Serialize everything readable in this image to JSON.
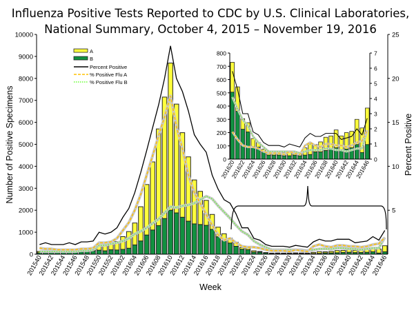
{
  "chart_data": {
    "type": "bar",
    "title": "Influenza Positive Tests Reported to CDC by U.S. Clinical Laboratories,",
    "subtitle": "National Summary, October 4, 2015 – November 19, 2016",
    "xlabel": "Week",
    "ylabel": "Number of Positive Specimens",
    "y2label": "Percent Positive",
    "ylim": [
      0,
      10000
    ],
    "y2lim": [
      0,
      25
    ],
    "yticks": [
      "0",
      "1000",
      "2000",
      "3000",
      "4000",
      "5000",
      "6000",
      "7000",
      "8000",
      "9000",
      "10000"
    ],
    "y2ticks": [
      "5",
      "10",
      "15",
      "20",
      "25"
    ],
    "legend_position": "top-left",
    "categories": [
      "201540",
      "201541",
      "201542",
      "201543",
      "201544",
      "201545",
      "201546",
      "201547",
      "201548",
      "201549",
      "201550",
      "201551",
      "201552",
      "201601",
      "201602",
      "201603",
      "201604",
      "201605",
      "201606",
      "201607",
      "201608",
      "201609",
      "201610",
      "201611",
      "201612",
      "201613",
      "201614",
      "201615",
      "201616",
      "201617",
      "201618",
      "201619",
      "201620",
      "201621",
      "201622",
      "201623",
      "201624",
      "201625",
      "201626",
      "201627",
      "201628",
      "201629",
      "201630",
      "201631",
      "201632",
      "201633",
      "201634",
      "201635",
      "201636",
      "201637",
      "201638",
      "201639",
      "201640",
      "201641",
      "201642",
      "201643",
      "201644",
      "201645",
      "201646"
    ],
    "xtick_labels": [
      "201540",
      "201542",
      "201544",
      "201546",
      "201548",
      "201550",
      "201552",
      "201602",
      "201604",
      "201606",
      "201608",
      "201610",
      "201612",
      "201614",
      "201616",
      "201618",
      "201620",
      "201622",
      "201624",
      "201626",
      "201628",
      "201630",
      "201632",
      "201634",
      "201636",
      "201638",
      "201640",
      "201642",
      "201644",
      "201646"
    ],
    "series": [
      {
        "name": "A",
        "kind": "stacked-bar",
        "color": "#ffff3c",
        "values": [
          65,
          65,
          70,
          75,
          90,
          100,
          110,
          125,
          140,
          130,
          220,
          300,
          320,
          390,
          580,
          760,
          1000,
          1560,
          2300,
          3100,
          4400,
          5530,
          6700,
          4950,
          3850,
          2930,
          2000,
          1510,
          1140,
          680,
          440,
          280,
          225,
          185,
          80,
          70,
          60,
          35,
          20,
          20,
          25,
          20,
          25,
          35,
          25,
          25,
          55,
          80,
          55,
          75,
          100,
          95,
          135,
          105,
          125,
          125,
          190,
          185,
          275
        ]
      },
      {
        "name": "B",
        "kind": "stacked-bar",
        "color": "#119140",
        "values": [
          60,
          65,
          70,
          75,
          80,
          100,
          110,
          115,
          120,
          150,
          180,
          150,
          200,
          190,
          220,
          270,
          420,
          600,
          870,
          1100,
          1300,
          1620,
          2000,
          1880,
          1680,
          1500,
          1380,
          1350,
          1310,
          1130,
          790,
          650,
          505,
          360,
          225,
          205,
          95,
          90,
          55,
          30,
          30,
          30,
          25,
          25,
          30,
          25,
          30,
          35,
          55,
          55,
          65,
          80,
          85,
          70,
          75,
          85,
          110,
          50,
          110
        ]
      },
      {
        "name": "Percent Positive",
        "kind": "line",
        "axis": "right",
        "color": "#000000",
        "values": [
          1.1,
          1.3,
          1.1,
          1.1,
          1.1,
          1.3,
          1.1,
          1.4,
          1.4,
          1.5,
          2.5,
          2.3,
          2.5,
          3.0,
          4.2,
          5.2,
          7.0,
          9.3,
          11.8,
          14.4,
          17.0,
          20.0,
          23.7,
          20.0,
          18.5,
          16.3,
          13.6,
          12.5,
          11.6,
          9.0,
          7.4,
          6.2,
          5.8,
          4.6,
          3.0,
          3.0,
          1.8,
          1.6,
          1.1,
          0.9,
          0.9,
          0.9,
          0.8,
          1.0,
          0.9,
          0.8,
          1.4,
          1.7,
          1.5,
          1.5,
          1.7,
          1.7,
          1.7,
          1.3,
          1.4,
          1.5,
          2.0,
          1.6,
          2.7
        ]
      },
      {
        "name": "% Positive Flu A",
        "kind": "line",
        "axis": "right",
        "style": "dashed",
        "color": "#ffc000",
        "values": [
          0.7,
          0.6,
          0.6,
          0.5,
          0.5,
          0.5,
          0.5,
          0.6,
          0.6,
          0.7,
          1.3,
          1.3,
          1.4,
          1.8,
          2.7,
          3.6,
          5.0,
          6.8,
          9.0,
          11.2,
          13.5,
          15.6,
          18.0,
          14.5,
          12.0,
          9.0,
          7.0,
          5.8,
          4.5,
          3.3,
          2.2,
          1.6,
          1.8,
          1.3,
          0.9,
          0.8,
          0.8,
          0.7,
          0.5,
          0.4,
          0.4,
          0.4,
          0.3,
          0.5,
          0.4,
          0.3,
          0.9,
          1.1,
          0.9,
          0.8,
          1.0,
          1.0,
          0.9,
          0.9,
          0.8,
          0.9,
          1.1,
          1.2,
          1.9
        ]
      },
      {
        "name": "% Positive Flu B",
        "kind": "line",
        "axis": "right",
        "style": "dotted",
        "color": "#66ff33",
        "values": [
          0.3,
          0.3,
          0.3,
          0.3,
          0.3,
          0.3,
          0.3,
          0.4,
          0.4,
          0.5,
          1.0,
          1.0,
          1.2,
          1.3,
          1.5,
          1.8,
          2.3,
          2.6,
          3.0,
          3.5,
          4.0,
          4.7,
          5.4,
          5.3,
          5.5,
          5.6,
          5.8,
          6.2,
          6.6,
          6.3,
          5.5,
          4.8,
          4.1,
          3.3,
          2.6,
          2.2,
          1.5,
          1.1,
          0.8,
          0.5,
          0.5,
          0.5,
          0.5,
          0.5,
          0.5,
          0.4,
          0.5,
          0.6,
          0.6,
          0.6,
          0.7,
          0.7,
          0.6,
          0.6,
          0.5,
          0.6,
          0.7,
          0.7,
          1.9
        ]
      }
    ],
    "inset": {
      "range": [
        "201620",
        "201646"
      ],
      "ylim": [
        0,
        800
      ],
      "y2lim": [
        0,
        7
      ],
      "yticks": [
        "0",
        "100",
        "200",
        "300",
        "400",
        "500",
        "600",
        "700",
        "800"
      ],
      "y2ticks": [
        "0",
        "1",
        "2",
        "3",
        "4",
        "5",
        "6",
        "7"
      ],
      "xtick_labels": [
        "201620",
        "201622",
        "201624",
        "201626",
        "201628",
        "201630",
        "201632",
        "201634",
        "201636",
        "201638",
        "201640",
        "201642",
        "201644",
        "201646"
      ]
    }
  }
}
